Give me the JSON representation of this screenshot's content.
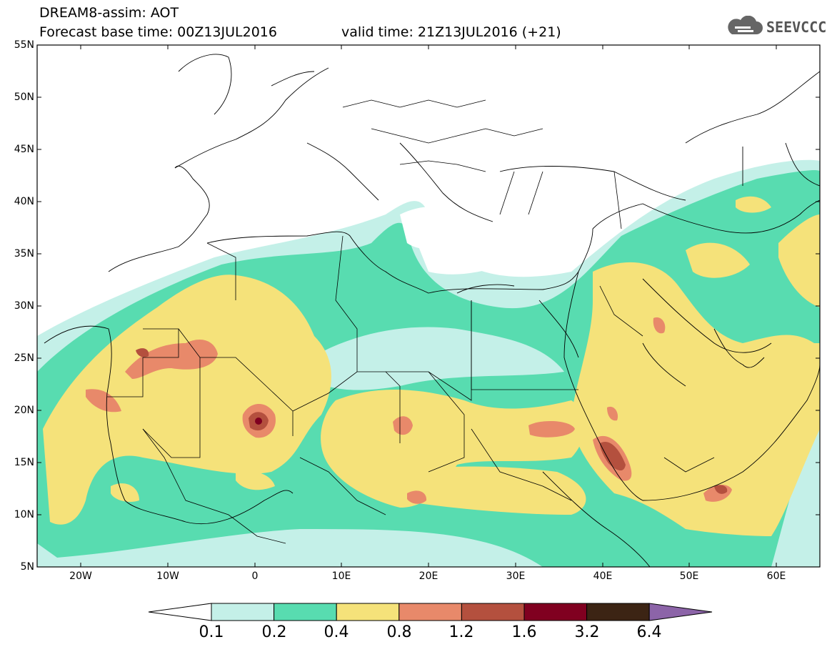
{
  "header": {
    "line1": "DREAM8-assim: AOT",
    "line2": "Forecast base time: 00Z13JUL2016",
    "line3": "valid time: 21Z13JUL2016 (+21)"
  },
  "logo": {
    "text": "SEEVCCC",
    "icon": "cloud-icon"
  },
  "axes": {
    "lat_labels": [
      "55N",
      "50N",
      "45N",
      "40N",
      "35N",
      "30N",
      "25N",
      "20N",
      "15N",
      "10N",
      "5N"
    ],
    "lon_labels": [
      "20W",
      "10W",
      "0",
      "10E",
      "20E",
      "30E",
      "40E",
      "50E",
      "60E"
    ],
    "lat_range": [
      5,
      55
    ],
    "lon_range": [
      -25,
      65
    ]
  },
  "colorbar": {
    "levels": [
      "0.1",
      "0.2",
      "0.4",
      "0.8",
      "1.2",
      "1.6",
      "3.2",
      "6.4"
    ],
    "colors": [
      "#c4f0e8",
      "#58dcb0",
      "#f5e27a",
      "#e8896a",
      "#b4503e",
      "#800020",
      "#3c2414",
      "#8c64a8"
    ],
    "under_color": "#ffffff"
  }
}
